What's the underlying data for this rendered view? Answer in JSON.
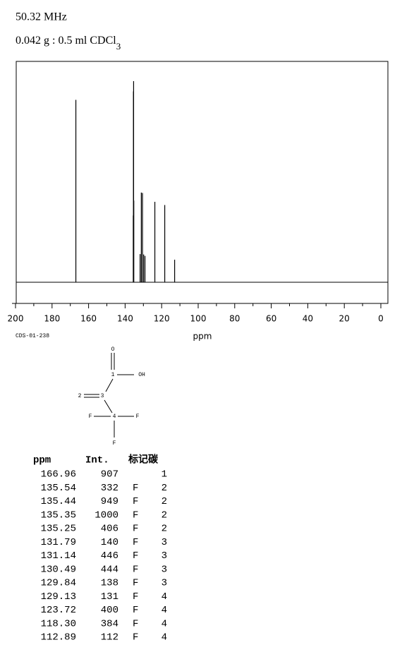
{
  "header": {
    "frequency": "50.32 MHz",
    "solution": "0.042 g : 0.5 ml CDCl",
    "solution_subscript": "3"
  },
  "chart_data": {
    "type": "stick",
    "x": [
      166.96,
      135.54,
      135.44,
      135.35,
      135.25,
      131.79,
      131.14,
      130.49,
      129.84,
      129.13,
      123.72,
      118.3,
      112.89
    ],
    "values": [
      907,
      332,
      949,
      1000,
      406,
      140,
      446,
      444,
      138,
      131,
      400,
      384,
      112
    ],
    "color": "#000000",
    "xlim": [
      200,
      0
    ],
    "xticks": [
      200,
      180,
      160,
      140,
      120,
      100,
      80,
      60,
      40,
      20,
      0
    ],
    "ylim": [
      0,
      1000
    ],
    "xlabel": "ppm"
  },
  "code": "CDS-01-238",
  "structure": {
    "nodes": [
      {
        "label": "O"
      },
      {
        "label": "1"
      },
      {
        "label": "OH"
      },
      {
        "label": "2"
      },
      {
        "label": "3"
      },
      {
        "label": "F"
      },
      {
        "label": "4"
      },
      {
        "label": "F"
      },
      {
        "label": "F"
      }
    ]
  },
  "table": {
    "header": [
      "ppm",
      "Int.",
      "标记碳"
    ],
    "rows": [
      {
        "ppm": "166.96",
        "int": "907",
        "assign": "1"
      },
      {
        "ppm": "135.54",
        "int": "332",
        "mult": "F",
        "assign": "2"
      },
      {
        "ppm": "135.44",
        "int": "949",
        "mult": "F",
        "assign": "2"
      },
      {
        "ppm": "135.35",
        "int": "1000",
        "mult": "F",
        "assign": "2"
      },
      {
        "ppm": "135.25",
        "int": "406",
        "mult": "F",
        "assign": "2"
      },
      {
        "ppm": "131.79",
        "int": "140",
        "mult": "F",
        "assign": "3"
      },
      {
        "ppm": "131.14",
        "int": "446",
        "mult": "F",
        "assign": "3"
      },
      {
        "ppm": "130.49",
        "int": "444",
        "mult": "F",
        "assign": "3"
      },
      {
        "ppm": "129.84",
        "int": "138",
        "mult": "F",
        "assign": "3"
      },
      {
        "ppm": "129.13",
        "int": "131",
        "mult": "F",
        "assign": "4"
      },
      {
        "ppm": "123.72",
        "int": "400",
        "mult": "F",
        "assign": "4"
      },
      {
        "ppm": "118.30",
        "int": "384",
        "mult": "F",
        "assign": "4"
      },
      {
        "ppm": "112.89",
        "int": "112",
        "mult": "F",
        "assign": "4"
      }
    ]
  }
}
